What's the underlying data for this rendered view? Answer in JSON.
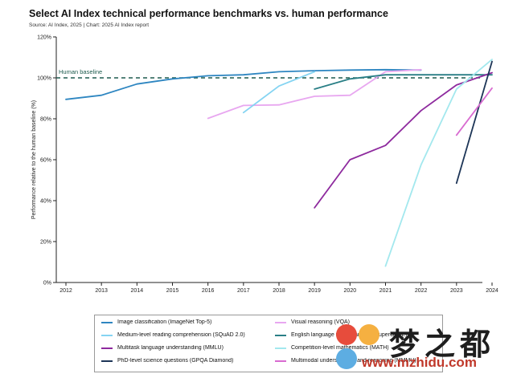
{
  "header": {
    "title": "Select AI Index technical performance benchmarks vs. human performance",
    "subtitle": "Source: AI Index, 2025 | Chart: 2025 AI Index report"
  },
  "chart_data": {
    "type": "line",
    "title": "Select AI Index technical performance benchmarks vs. human performance",
    "xlabel": "",
    "ylabel": "Performance relative to the human baseline (%)",
    "xlim": [
      2012,
      2024
    ],
    "ylim": [
      0,
      120
    ],
    "x_ticks": [
      "2012",
      "2013",
      "2014",
      "2015",
      "2016",
      "2017",
      "2018",
      "2019",
      "2020",
      "2021",
      "2022",
      "2023",
      "2024"
    ],
    "y_ticks": [
      "0%",
      "20%",
      "40%",
      "60%",
      "80%",
      "100%",
      "120%"
    ],
    "baseline": {
      "label": "Human baseline",
      "value": 100,
      "color": "#1f5c4f"
    },
    "series": [
      {
        "name": "Image classification (ImageNet Top-5)",
        "color": "#2e86c1",
        "x": [
          2012,
          2013,
          2014,
          2015,
          2016,
          2017,
          2018,
          2019,
          2020,
          2021,
          2022
        ],
        "y": [
          89.5,
          91.5,
          97,
          99.5,
          101,
          101.5,
          103,
          103.5,
          103.8,
          104,
          103.8
        ]
      },
      {
        "name": "Visual reasoning (VQA)",
        "color": "#e8a7f0",
        "x": [
          2016,
          2017,
          2018,
          2019,
          2020,
          2021,
          2022
        ],
        "y": [
          80.2,
          86.5,
          86.8,
          91,
          91.5,
          103,
          104
        ]
      },
      {
        "name": "Medium-level reading comprehension (SQuAD 2.0)",
        "color": "#85d4f2",
        "x": [
          2017,
          2018,
          2019
        ],
        "y": [
          83,
          96,
          103
        ]
      },
      {
        "name": "English language understanding (SuperGLUE)",
        "color": "#2a7f86",
        "x": [
          2019,
          2020,
          2021,
          2022,
          2023,
          2024
        ],
        "y": [
          94.5,
          99.5,
          101.5,
          101.5,
          101.5,
          101.5
        ]
      },
      {
        "name": "Multitask language understanding (MMLU)",
        "color": "#8e2a9e",
        "x": [
          2019,
          2020,
          2021,
          2022,
          2023,
          2024
        ],
        "y": [
          36.5,
          60,
          67,
          84,
          96.5,
          102.5
        ]
      },
      {
        "name": "Competition-level mathematics (MATH)",
        "color": "#a3e8ee",
        "x": [
          2021,
          2022,
          2023,
          2024
        ],
        "y": [
          8,
          57.5,
          94.5,
          109
        ]
      },
      {
        "name": "PhD-level science questions (GPQA Diamond)",
        "color": "#1d3557",
        "x": [
          2023,
          2024
        ],
        "y": [
          48.5,
          108
        ]
      },
      {
        "name": "Multimodal understanding and reasoning (MMMU)",
        "color": "#d86bd0",
        "x": [
          2023,
          2024
        ],
        "y": [
          72,
          95
        ]
      }
    ]
  },
  "legend": {
    "items": [
      {
        "label": "Image classification (ImageNet Top-5)",
        "color": "#2e86c1"
      },
      {
        "label": "Visual reasoning (VQA)",
        "color": "#e8a7f0"
      },
      {
        "label": "Medium-level reading comprehension (SQuAD 2.0)",
        "color": "#85d4f2"
      },
      {
        "label": "English language understanding (SuperGLUE)",
        "color": "#2a7f86"
      },
      {
        "label": "Multitask language understanding (MMLU)",
        "color": "#8e2a9e"
      },
      {
        "label": "Competition-level mathematics (MATH)",
        "color": "#a3e8ee"
      },
      {
        "label": "PhD-level science questions (GPQA Diamond)",
        "color": "#1d3557"
      },
      {
        "label": "Multimodal understanding and reasoning (MMMU)",
        "color": "#d86bd0"
      }
    ]
  },
  "watermark": {
    "text": "梦之都",
    "url": "www.mzhidu.com",
    "colors": [
      "#e74c3c",
      "#f5b041",
      "#5dade2"
    ]
  }
}
